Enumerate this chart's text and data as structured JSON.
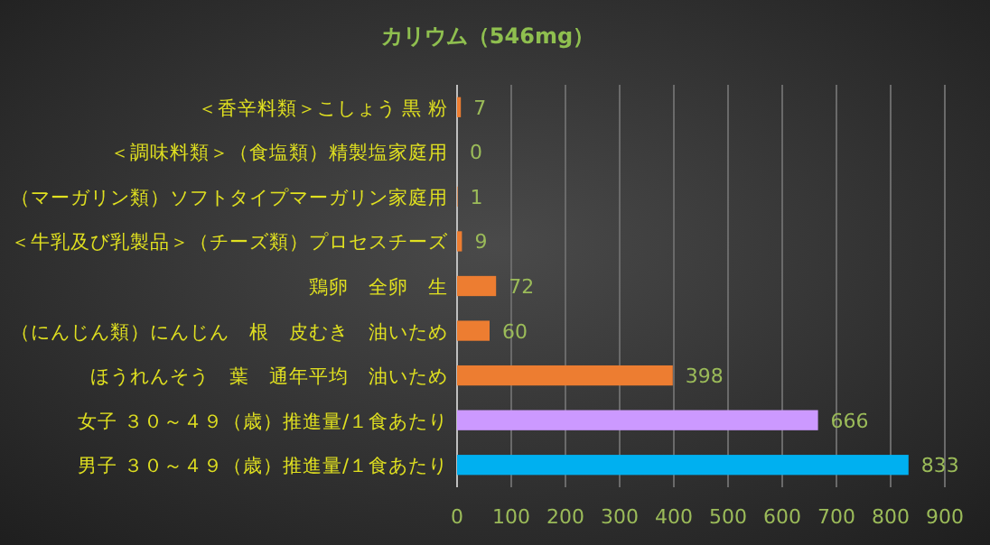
{
  "chart_data": {
    "type": "bar",
    "orientation": "horizontal",
    "title": "カリウム（546mg）",
    "categories": [
      "＜香辛料類＞こしょう 黒 粉",
      "＜調味料類＞（食塩類）精製塩家庭用",
      "（マーガリン類）ソフトタイプマーガリン家庭用",
      "＜牛乳及び乳製品＞（チーズ類）プロセスチーズ",
      "鶏卵　全卵　生",
      "（にんじん類）にんじん　根　皮むき　油いため",
      "ほうれんそう　葉　通年平均　油いため",
      "女子 ３０～４９（歳）推進量/１食あたり",
      "男子 ３０～４９（歳）推進量/１食あたり"
    ],
    "values": [
      7,
      0,
      1,
      9,
      72,
      60,
      398,
      666,
      833
    ],
    "colors": [
      "#ed7d31",
      "#ed7d31",
      "#ed7d31",
      "#ed7d31",
      "#ed7d31",
      "#ed7d31",
      "#ed7d31",
      "#cc99ff",
      "#00b0f0"
    ],
    "xlim": [
      0,
      900
    ],
    "xticks": [
      0,
      100,
      200,
      300,
      400,
      500,
      600,
      700,
      800,
      900
    ],
    "grid": "x",
    "data_labels": true
  }
}
